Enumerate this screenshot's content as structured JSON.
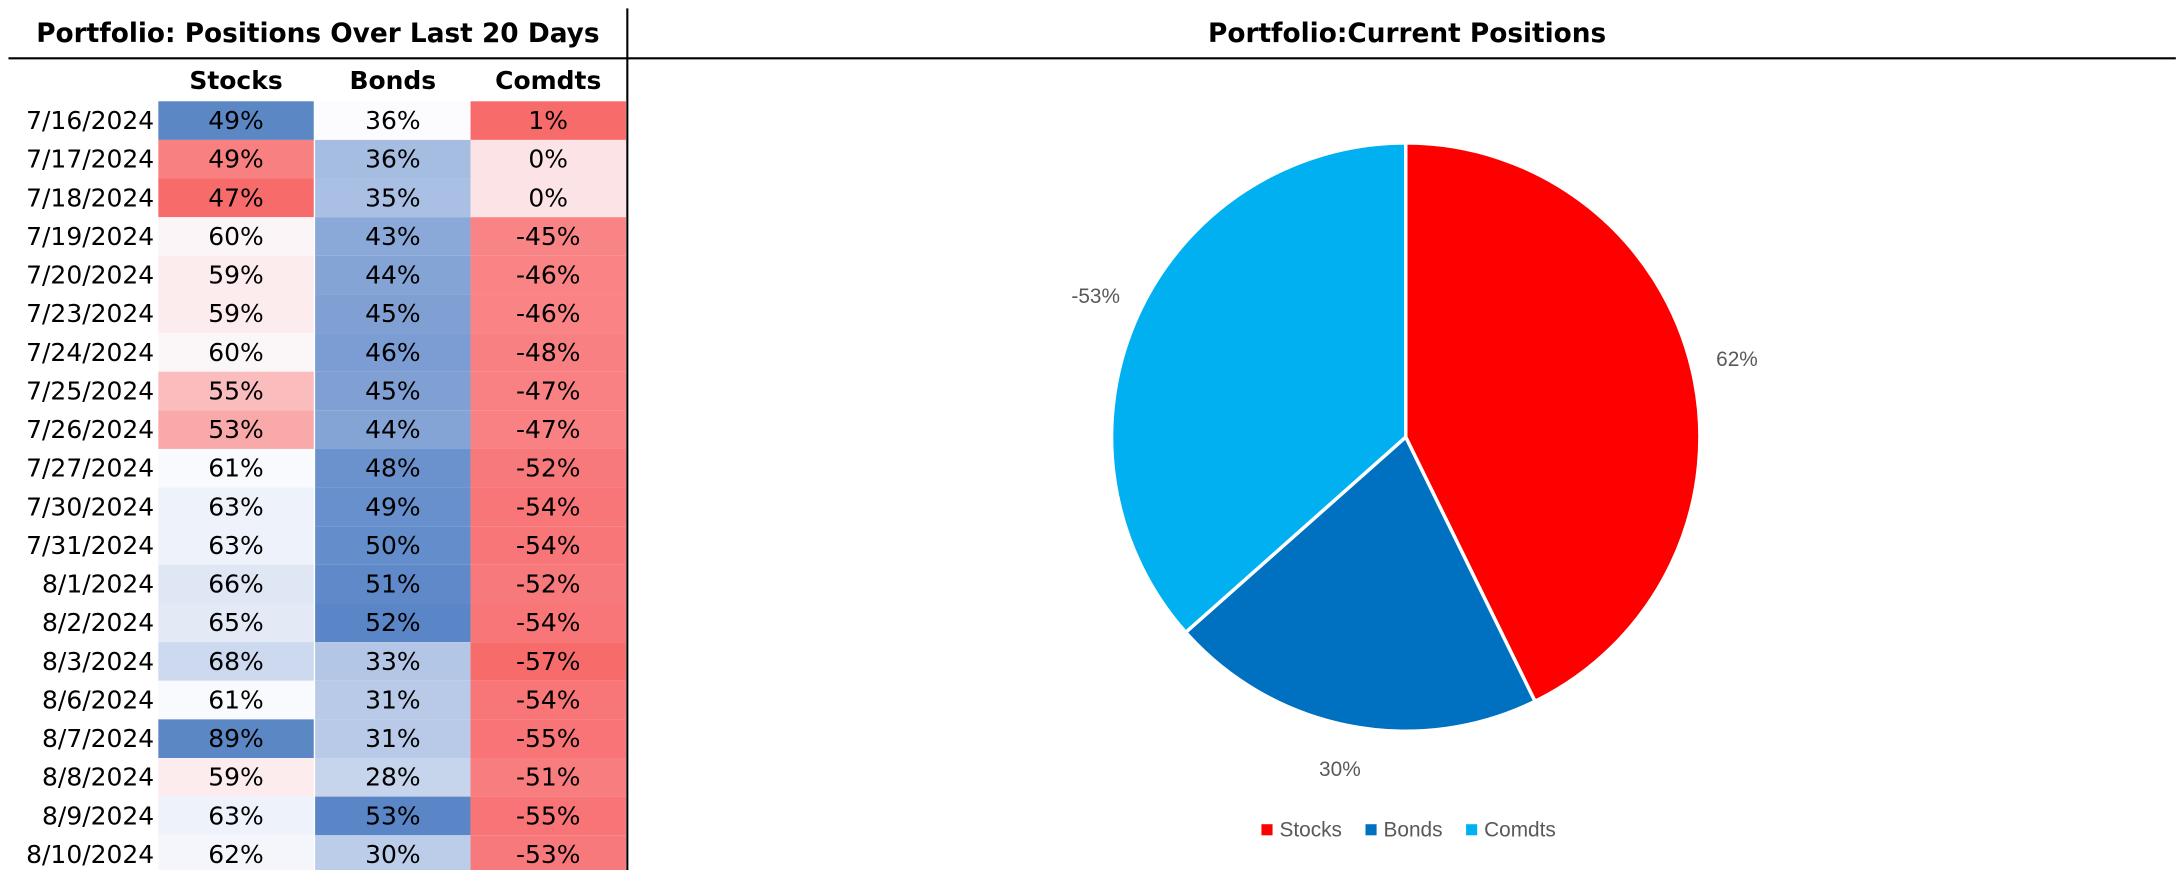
{
  "table": {
    "title": "Portfolio: Positions Over Last 20 Days",
    "columns": [
      "Stocks",
      "Bonds",
      "Comdts"
    ],
    "rows": [
      [
        "7/16/2024",
        "49%",
        "36%",
        "1%"
      ],
      [
        "7/17/2024",
        "49%",
        "36%",
        "0%"
      ],
      [
        "7/18/2024",
        "47%",
        "35%",
        "0%"
      ],
      [
        "7/19/2024",
        "60%",
        "43%",
        "-45%"
      ],
      [
        "7/20/2024",
        "59%",
        "44%",
        "-46%"
      ],
      [
        "7/23/2024",
        "59%",
        "45%",
        "-46%"
      ],
      [
        "7/24/2024",
        "60%",
        "46%",
        "-48%"
      ],
      [
        "7/25/2024",
        "55%",
        "45%",
        "-47%"
      ],
      [
        "7/26/2024",
        "53%",
        "44%",
        "-47%"
      ],
      [
        "7/27/2024",
        "61%",
        "48%",
        "-52%"
      ],
      [
        "7/30/2024",
        "63%",
        "49%",
        "-54%"
      ],
      [
        "7/31/2024",
        "63%",
        "50%",
        "-54%"
      ],
      [
        "8/1/2024",
        "66%",
        "51%",
        "-52%"
      ],
      [
        "8/2/2024",
        "65%",
        "52%",
        "-54%"
      ],
      [
        "8/3/2024",
        "68%",
        "33%",
        "-57%"
      ],
      [
        "8/6/2024",
        "61%",
        "31%",
        "-54%"
      ],
      [
        "8/7/2024",
        "89%",
        "31%",
        "-55%"
      ],
      [
        "8/8/2024",
        "59%",
        "28%",
        "-51%"
      ],
      [
        "8/9/2024",
        "63%",
        "53%",
        "-55%"
      ],
      [
        "8/10/2024",
        "62%",
        "30%",
        "-53%"
      ]
    ],
    "cell_colors": [
      [
        "#5b87c5",
        "#fcfcff",
        "#f86b6b"
      ],
      [
        "#f98080",
        "#a6bde2",
        "#fce4e6"
      ],
      [
        "#f86b6b",
        "#a9bfe3",
        "#fce4e6"
      ],
      [
        "#fbf5f7",
        "#8aa8d8",
        "#f98486"
      ],
      [
        "#fcecee",
        "#85a4d6",
        "#f98385"
      ],
      [
        "#fcecee",
        "#80a0d4",
        "#f98385"
      ],
      [
        "#fbf7f9",
        "#7b9dd3",
        "#f98082"
      ],
      [
        "#fbbcbe",
        "#80a0d4",
        "#f98183"
      ],
      [
        "#faa9ab",
        "#85a4d6",
        "#f98183"
      ],
      [
        "#f9fafd",
        "#6c92cd",
        "#f8797b"
      ],
      [
        "#eef2fa",
        "#6890cc",
        "#f87678"
      ],
      [
        "#eef2fa",
        "#638dcb",
        "#f87678"
      ],
      [
        "#dfe6f4",
        "#5f89c9",
        "#f8797b"
      ],
      [
        "#e3e9f5",
        "#5a85c7",
        "#f87678"
      ],
      [
        "#ccd9ee",
        "#b3c6e6",
        "#f86b6b"
      ],
      [
        "#f9fafd",
        "#b8cae8",
        "#f87678"
      ],
      [
        "#5b87c5",
        "#b8cae8",
        "#f87476"
      ],
      [
        "#fcecee",
        "#c6d4ec",
        "#f87d7f"
      ],
      [
        "#eef2fa",
        "#5a85c7",
        "#f87476"
      ],
      [
        "#f4f6fb",
        "#bccdea",
        "#f8797b"
      ]
    ]
  },
  "chart_data": {
    "type": "pie",
    "title": "Portfolio:Current Positions",
    "categories": [
      "Stocks",
      "Bonds",
      "Comdts"
    ],
    "values": [
      62,
      30,
      -53
    ],
    "value_labels": [
      "62%",
      "30%",
      "-53%"
    ],
    "colors": [
      "#ff0000",
      "#0070c0",
      "#00b0f0"
    ],
    "legend": "bottom"
  }
}
